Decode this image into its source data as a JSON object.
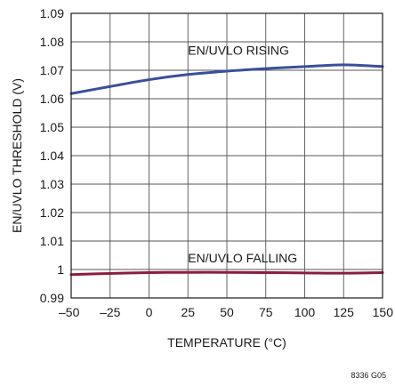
{
  "chart_data": {
    "type": "line",
    "xlabel": "TEMPERATURE (°C)",
    "ylabel": "EN/UVLO THRESHOLD (V)",
    "xlim": [
      -50,
      150
    ],
    "ylim": [
      0.99,
      1.09
    ],
    "x_ticks": [
      -50,
      -25,
      0,
      25,
      50,
      75,
      100,
      125,
      150
    ],
    "x_tick_labels": [
      "–50",
      "–25",
      "0",
      "25",
      "50",
      "75",
      "100",
      "125",
      "150"
    ],
    "y_ticks": [
      0.99,
      1.0,
      1.01,
      1.02,
      1.03,
      1.04,
      1.05,
      1.06,
      1.07,
      1.08,
      1.09
    ],
    "y_tick_labels": [
      "0.99",
      "1",
      "1.01",
      "1.02",
      "1.03",
      "1.04",
      "1.05",
      "1.06",
      "1.07",
      "1.08",
      "1.09"
    ],
    "grid": true,
    "series": [
      {
        "name": "EN/UVLO RISING",
        "color": "#3a4f9b",
        "x": [
          -50,
          -25,
          0,
          25,
          50,
          75,
          100,
          125,
          150
        ],
        "y": [
          1.0618,
          1.0643,
          1.0667,
          1.0685,
          1.0697,
          1.0706,
          1.0713,
          1.0719,
          1.0713
        ]
      },
      {
        "name": "EN/UVLO FALLING",
        "color": "#8c1d3e",
        "x": [
          -50,
          -25,
          0,
          25,
          50,
          75,
          100,
          125,
          150
        ],
        "y": [
          0.9982,
          0.9986,
          0.9989,
          0.999,
          0.999,
          0.9989,
          0.9988,
          0.9987,
          0.9989
        ]
      }
    ],
    "annotations": [
      {
        "text": "EN/UVLO RISING",
        "x": 25,
        "y": 1.0755
      },
      {
        "text": "EN/UVLO FALLING",
        "x": 25,
        "y": 1.0025
      }
    ],
    "figure_code": "8336 G05"
  }
}
